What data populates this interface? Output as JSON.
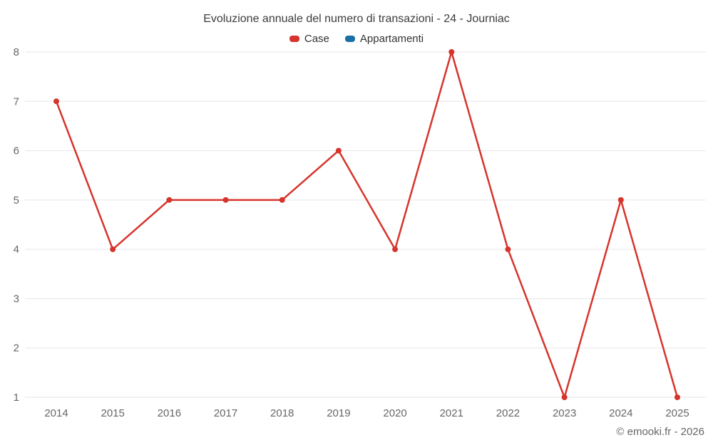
{
  "title": "Evoluzione annuale del numero di transazioni - 24 - Journiac",
  "credit": "© emooki.fr - 2026",
  "legend": [
    {
      "label": "Case",
      "color": "#d6342c"
    },
    {
      "label": "Appartamenti",
      "color": "#1b6ea6"
    }
  ],
  "chart_data": {
    "type": "line",
    "title": "Evoluzione annuale del numero di transazioni - 24 - Journiac",
    "categories": [
      "2014",
      "2015",
      "2016",
      "2017",
      "2018",
      "2019",
      "2020",
      "2021",
      "2022",
      "2023",
      "2024",
      "2025"
    ],
    "series": [
      {
        "name": "Case",
        "color": "#d6342c",
        "values": [
          7,
          4,
          5,
          5,
          5,
          6,
          4,
          8,
          4,
          1,
          5,
          1
        ]
      },
      {
        "name": "Appartamenti",
        "color": "#1b6ea6",
        "values": []
      }
    ],
    "xlabel": "",
    "ylabel": "",
    "ylim": [
      1,
      8
    ],
    "yticks": [
      1,
      2,
      3,
      4,
      5,
      6,
      7,
      8
    ],
    "grid": true,
    "legend_position": "top"
  }
}
